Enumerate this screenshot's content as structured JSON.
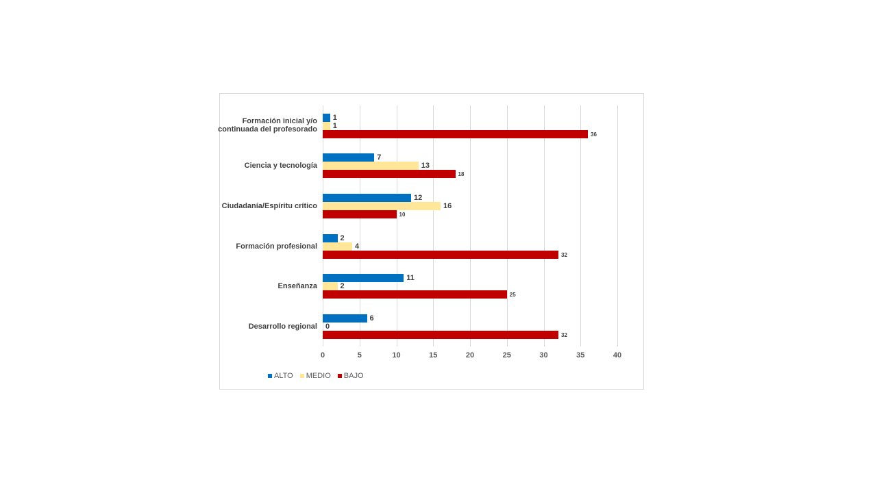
{
  "chart_data": {
    "type": "bar",
    "orientation": "horizontal",
    "title": "",
    "xlabel": "",
    "ylabel": "",
    "xlim": [
      0,
      40
    ],
    "x_ticks": [
      "0",
      "5",
      "10",
      "15",
      "20",
      "25",
      "30",
      "35",
      "40"
    ],
    "grid": true,
    "legend_position": "bottom-left",
    "categories": [
      "Formación inicial y/o continuada del profesorado",
      "Ciencia y tecnología",
      "Ciudadanía/Espíritu crítico",
      "Formación profesional",
      "Enseñanza",
      "Desarrollo regional"
    ],
    "series": [
      {
        "name": "ALTO",
        "color": "#0070c0",
        "values": [
          1,
          7,
          12,
          2,
          11,
          6
        ]
      },
      {
        "name": "MEDIO",
        "color": "#ffe699",
        "values": [
          1,
          13,
          16,
          4,
          2,
          0
        ]
      },
      {
        "name": "BAJO",
        "color": "#c00000",
        "values": [
          36,
          18,
          10,
          32,
          25,
          32
        ]
      }
    ]
  },
  "labels": {
    "cat0_line1": "Formación inicial y/o",
    "cat0_line2": "continuada del profesorado",
    "cat1": "Ciencia y tecnología",
    "cat2": "Ciudadanía/Espíritu crítico",
    "cat3": "Formación profesional",
    "cat4": "Enseñanza",
    "cat5": "Desarrollo regional"
  },
  "legend": [
    "ALTO",
    "MEDIO",
    "BAJO"
  ]
}
